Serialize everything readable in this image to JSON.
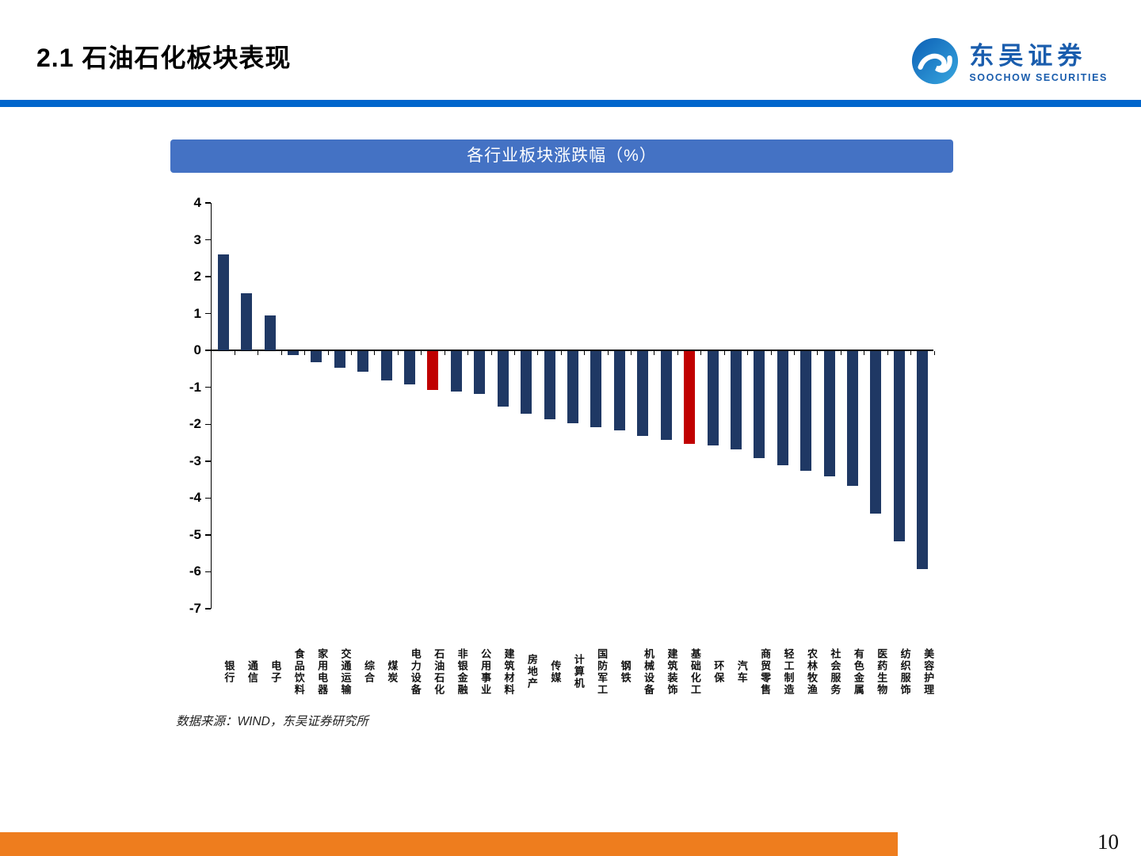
{
  "header": {
    "title": "2.1 石油石化板块表现"
  },
  "logo": {
    "name_cn": "东吴证券",
    "name_en": "SOOCHOW SECURITIES"
  },
  "chart": {
    "title": "各行业板块涨跌幅（%）"
  },
  "chart_data": {
    "type": "bar",
    "title": "各行业板块涨跌幅（%）",
    "xlabel": "",
    "ylabel": "",
    "ylim": [
      -7,
      4
    ],
    "yticks": [
      4,
      3,
      2,
      1,
      0,
      -1,
      -2,
      -3,
      -4,
      -5,
      -6,
      -7
    ],
    "grid": false,
    "legend": "none",
    "bar_color": "#1F3864",
    "highlight_color": "#C00000",
    "highlight_indices": [
      9,
      20
    ],
    "categories": [
      "银行",
      "通信",
      "电子",
      "食品饮料",
      "家用电器",
      "交通运输",
      "综合",
      "煤炭",
      "电力设备",
      "石油石化",
      "非银金融",
      "公用事业",
      "建筑材料",
      "房地产",
      "传媒",
      "计算机",
      "国防军工",
      "钢铁",
      "机械设备",
      "建筑装饰",
      "基础化工",
      "环保",
      "汽车",
      "商贸零售",
      "轻工制造",
      "农林牧渔",
      "社会服务",
      "有色金属",
      "医药生物",
      "纺织服饰",
      "美容护理"
    ],
    "values": [
      2.6,
      1.55,
      0.95,
      -0.1,
      -0.3,
      -0.45,
      -0.55,
      -0.8,
      -0.9,
      -1.05,
      -1.1,
      -1.15,
      -1.5,
      -1.7,
      -1.85,
      -1.95,
      -2.05,
      -2.15,
      -2.3,
      -2.4,
      -2.5,
      -2.55,
      -2.65,
      -2.9,
      -3.1,
      -3.25,
      -3.4,
      -3.65,
      -4.4,
      -5.15,
      -5.9
    ]
  },
  "source": {
    "text": "数据来源：WIND，东吴证券研究所"
  },
  "footer": {
    "page_number": "10"
  },
  "colors": {
    "divider_blue": "#0066CC",
    "title_bar_blue": "#4472C4",
    "bar_navy": "#1F3864",
    "bar_red": "#C00000",
    "footer_orange": "#EE7D1E",
    "logo_blue": "#1A5DAD"
  }
}
